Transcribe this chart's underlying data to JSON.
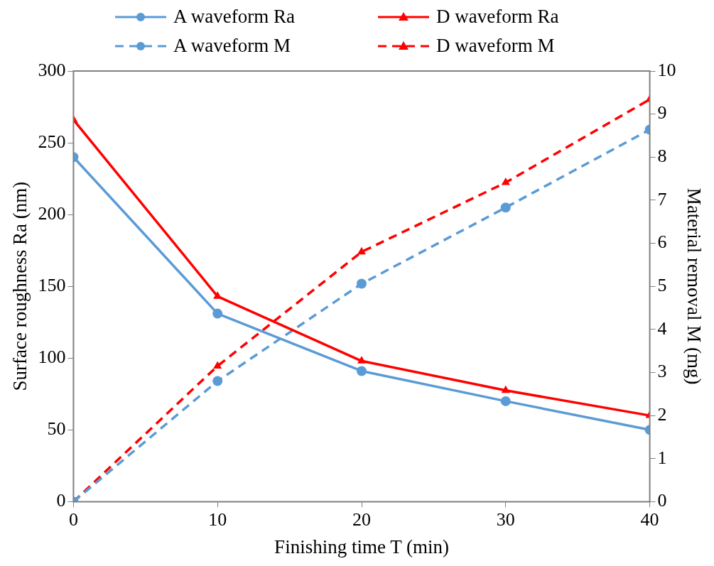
{
  "chart_data": {
    "type": "line",
    "xlabel": "Finishing time T (min)",
    "ylabel": "Surface roughness Ra (nm)",
    "y2label": "Material removal M (mg)",
    "x": [
      0,
      10,
      20,
      30,
      40
    ],
    "xlim": [
      0,
      40
    ],
    "xticks": [
      0,
      10,
      20,
      30,
      40
    ],
    "ylim": [
      0,
      300
    ],
    "yticks": [
      0,
      50,
      100,
      150,
      200,
      250,
      300
    ],
    "y2lim": [
      0,
      10
    ],
    "y2ticks": [
      0,
      1,
      2,
      3,
      4,
      5,
      6,
      7,
      8,
      9,
      10
    ],
    "grid": false,
    "legend": "top",
    "series": [
      {
        "name": "A waveform Ra",
        "color": "#5b9bd5",
        "values": [
          240,
          131,
          91,
          70,
          50
        ],
        "marker": "circle",
        "line_style": "solid"
      },
      {
        "name": "D waveform Ra",
        "color": "#ff0000",
        "values": [
          266,
          143,
          98,
          77.5,
          60
        ],
        "marker": "triangle",
        "line_style": "solid"
      },
      {
        "name": "A waveform M",
        "color": "#5b9bd5",
        "values": [
          0,
          2.8,
          5.06,
          6.83,
          8.64
        ],
        "axis": "y2",
        "marker": "circle",
        "line_style": "dashed"
      },
      {
        "name": "D waveform M",
        "color": "#ff0000",
        "values": [
          0,
          3.15,
          5.8,
          7.41,
          9.34
        ],
        "axis": "y2",
        "marker": "triangle",
        "line_style": "dashed"
      }
    ]
  }
}
